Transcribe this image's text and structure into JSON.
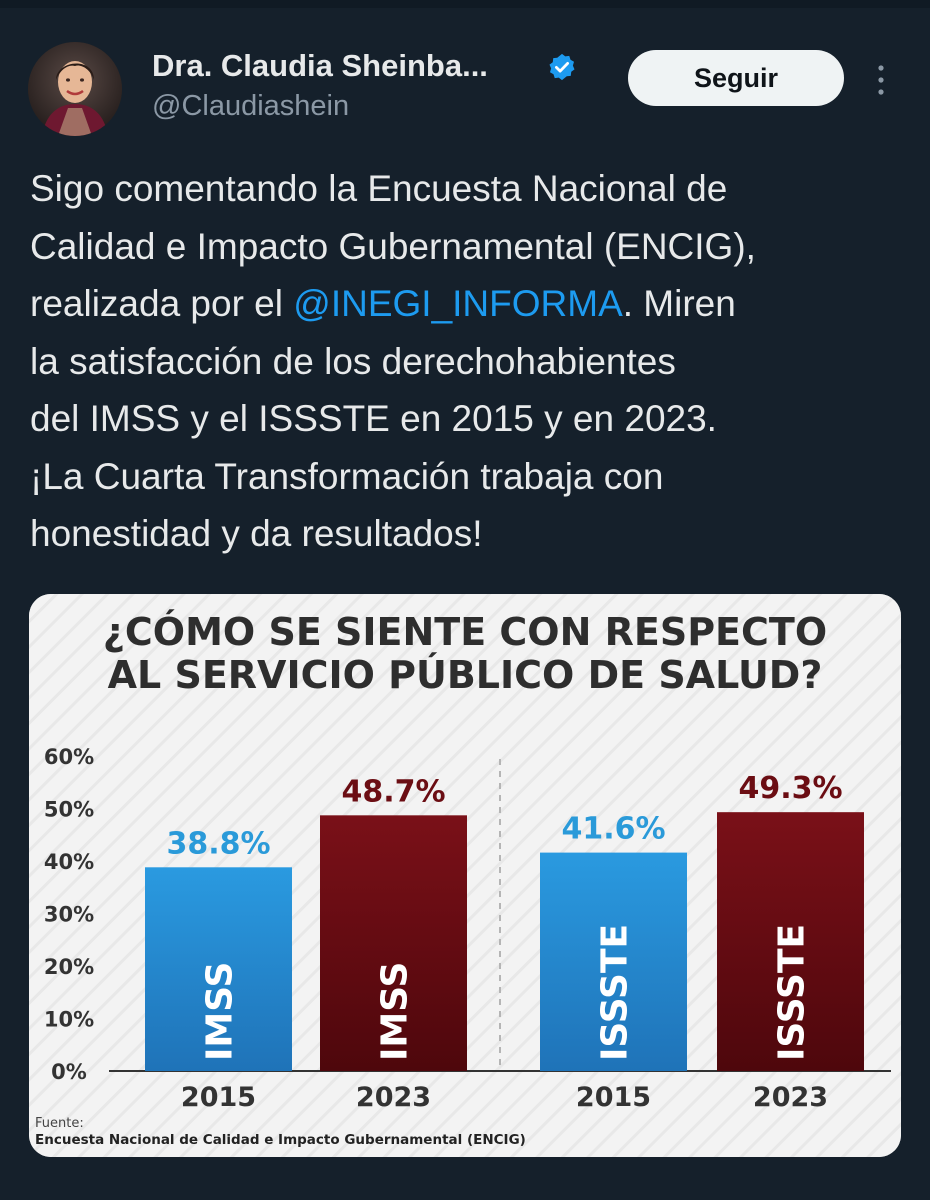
{
  "author": {
    "name": "Dra. Claudia Sheinba...",
    "handle": "@Claudiashein",
    "verified_icon": "verified-badge-icon"
  },
  "actions": {
    "follow_label": "Seguir",
    "more_icon": "more-vertical-icon"
  },
  "tweet": {
    "lines": [
      "Sigo comentando la Encuesta Nacional de",
      "Calidad e Impacto Gubernamental (ENCIG),",
      "realizada por el ",
      "la satisfacción de los derechohabientes",
      "del IMSS y el ISSSTE en 2015 y en 2023.",
      "¡La Cuarta Transformación trabaja con",
      "honestidad y da resultados!"
    ],
    "mention": "@INEGI_INFORMA",
    "after_mention": ". Miren"
  },
  "colors": {
    "background": "#15202b",
    "link": "#1d9bf0",
    "bar_2015": "#2a8fd4",
    "bar_2023": "#6b0d13",
    "label_2015": "#2a9ad9",
    "label_2023": "#6b0d13"
  },
  "chart_data": {
    "type": "bar",
    "title_lines": [
      "¿CÓMO SE SIENTE CON RESPECTO",
      "AL SERVICIO PÚBLICO DE SALUD?"
    ],
    "ylim": [
      0,
      60
    ],
    "yticks": [
      "0%",
      "10%",
      "20%",
      "30%",
      "40%",
      "50%",
      "60%"
    ],
    "bars": [
      {
        "group": "IMSS",
        "year": "2015",
        "value": 38.8,
        "label": "38.8%",
        "name": "IMSS"
      },
      {
        "group": "IMSS",
        "year": "2023",
        "value": 48.7,
        "label": "48.7%",
        "name": "IMSS"
      },
      {
        "group": "ISSSTE",
        "year": "2015",
        "value": 41.6,
        "label": "41.6%",
        "name": "ISSSTE"
      },
      {
        "group": "ISSSTE",
        "year": "2023",
        "value": 49.3,
        "label": "49.3%",
        "name": "ISSSTE"
      }
    ],
    "source_label": "Fuente:",
    "source_text": "Encuesta Nacional de Calidad e Impacto Gubernamental (ENCIG)"
  }
}
